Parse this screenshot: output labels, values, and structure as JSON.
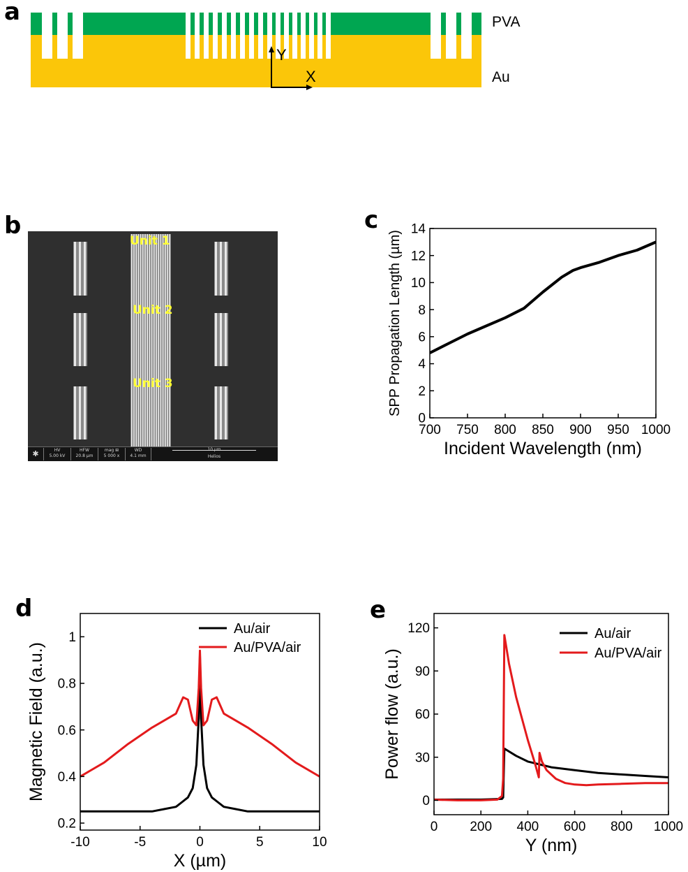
{
  "panels": {
    "a": "a",
    "b": "b",
    "c": "c",
    "d": "d",
    "e": "e"
  },
  "panel_a": {
    "layer_top": "PVA",
    "layer_bottom": "Au",
    "axis_y": "Y",
    "axis_x": "X",
    "colors": {
      "pva": "#00a651",
      "au": "#fbc609"
    }
  },
  "panel_b": {
    "unit_labels": [
      "Unit 1",
      "Unit 2",
      "Unit 3"
    ],
    "info_bar": [
      {
        "label": "HV",
        "value": "5.00 kV"
      },
      {
        "label": "HFW",
        "value": "20.8 µm"
      },
      {
        "label": "mag ⊞",
        "value": "5 000 x"
      },
      {
        "label": "WD",
        "value": "4.1 mm"
      }
    ],
    "scale_text": "10 µm",
    "brand": "Helios"
  },
  "chart_data": [
    {
      "id": "c",
      "type": "line",
      "xlabel": "Incident Wavelength (nm)",
      "ylabel": "SPP Propagation Length (µm)",
      "xlim": [
        700,
        1000
      ],
      "ylim": [
        0,
        14
      ],
      "xticks": [
        700,
        750,
        800,
        850,
        900,
        950,
        1000
      ],
      "yticks": [
        0,
        2,
        4,
        6,
        8,
        10,
        12,
        14
      ],
      "series": [
        {
          "color": "#000000",
          "x": [
            700,
            725,
            750,
            775,
            800,
            825,
            850,
            875,
            890,
            900,
            925,
            950,
            975,
            1000
          ],
          "y": [
            4.8,
            5.5,
            6.2,
            6.8,
            7.4,
            8.1,
            9.3,
            10.4,
            10.9,
            11.1,
            11.5,
            12.0,
            12.4,
            13.0
          ]
        }
      ]
    },
    {
      "id": "d",
      "type": "line",
      "xlabel": "X (µm)",
      "ylabel": "Magnetic Field (a.u.)",
      "xlim": [
        -10,
        10
      ],
      "ylim": [
        0.17,
        1.1
      ],
      "xticks": [
        -10,
        -5,
        0,
        5,
        10
      ],
      "yticks": [
        0.2,
        0.4,
        0.6,
        0.8,
        1.0
      ],
      "legend": "top-right",
      "series": [
        {
          "name": "Au/air",
          "color": "#000000",
          "x": [
            -10,
            -8,
            -6,
            -4,
            -3,
            -2,
            -1.5,
            -1,
            -0.6,
            -0.3,
            -0.1,
            0,
            0.1,
            0.3,
            0.6,
            1,
            1.5,
            2,
            3,
            4,
            6,
            8,
            10
          ],
          "y": [
            0.25,
            0.25,
            0.25,
            0.25,
            0.26,
            0.27,
            0.29,
            0.31,
            0.35,
            0.45,
            0.65,
            0.92,
            0.65,
            0.45,
            0.35,
            0.31,
            0.29,
            0.27,
            0.26,
            0.25,
            0.25,
            0.25,
            0.25
          ]
        },
        {
          "name": "Au/PVA/air",
          "color": "#e31a1c",
          "x": [
            -10,
            -8,
            -6,
            -4,
            -3,
            -2,
            -1.4,
            -1,
            -0.6,
            -0.3,
            -0.1,
            0,
            0.1,
            0.3,
            0.6,
            1,
            1.4,
            2,
            3,
            4,
            6,
            8,
            10
          ],
          "y": [
            0.4,
            0.46,
            0.54,
            0.61,
            0.64,
            0.67,
            0.74,
            0.73,
            0.64,
            0.62,
            0.78,
            0.94,
            0.78,
            0.62,
            0.64,
            0.73,
            0.74,
            0.67,
            0.64,
            0.61,
            0.54,
            0.46,
            0.4
          ]
        }
      ]
    },
    {
      "id": "e",
      "type": "line",
      "xlabel": "Y (nm)",
      "ylabel": "Power flow (a.u.)",
      "xlim": [
        0,
        1000
      ],
      "ylim": [
        -10,
        130
      ],
      "xticks": [
        0,
        200,
        400,
        600,
        800,
        1000
      ],
      "yticks": [
        0,
        30,
        60,
        90,
        120
      ],
      "legend": "top-right",
      "series": [
        {
          "name": "Au/air",
          "color": "#000000",
          "x": [
            0,
            100,
            200,
            290,
            295,
            300,
            320,
            350,
            400,
            450,
            500,
            600,
            700,
            800,
            900,
            1000
          ],
          "y": [
            0.5,
            0.5,
            0.5,
            1,
            2,
            36,
            34,
            31,
            27,
            25,
            23,
            21,
            19,
            18,
            17,
            16
          ]
        },
        {
          "name": "Au/PVA/air",
          "color": "#e31a1c",
          "x": [
            0,
            100,
            200,
            270,
            290,
            295,
            300,
            320,
            350,
            400,
            430,
            447,
            450,
            460,
            480,
            520,
            560,
            600,
            650,
            700,
            800,
            900,
            1000
          ],
          "y": [
            0.5,
            0,
            0,
            0.5,
            3,
            15,
            115,
            95,
            72,
            42,
            26,
            16,
            33,
            27,
            21,
            15,
            12,
            11,
            10.5,
            11,
            11.5,
            12,
            12
          ]
        }
      ]
    }
  ]
}
